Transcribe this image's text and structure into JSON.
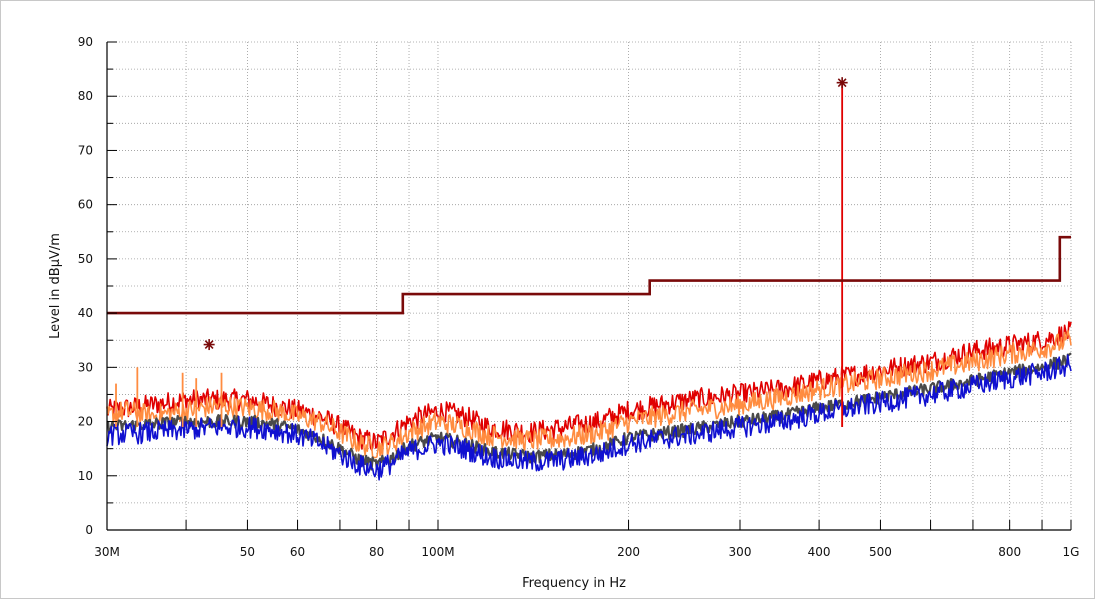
{
  "chart_data": {
    "type": "line",
    "xlabel": "Frequency in Hz",
    "ylabel": "Level in dBµV/m",
    "x_scale": "log",
    "xlim": [
      30000000,
      1000000000
    ],
    "ylim": [
      0,
      90
    ],
    "grid": true,
    "y_ticks": [
      0,
      10,
      20,
      30,
      40,
      50,
      60,
      70,
      80,
      90
    ],
    "x_ticks": [
      {
        "value": 30000000,
        "label": "30M"
      },
      {
        "value": 40000000,
        "label": ""
      },
      {
        "value": 50000000,
        "label": "50"
      },
      {
        "value": 60000000,
        "label": "60"
      },
      {
        "value": 70000000,
        "label": ""
      },
      {
        "value": 80000000,
        "label": "80"
      },
      {
        "value": 90000000,
        "label": ""
      },
      {
        "value": 100000000,
        "label": "100M"
      },
      {
        "value": 200000000,
        "label": "200"
      },
      {
        "value": 300000000,
        "label": "300"
      },
      {
        "value": 400000000,
        "label": "400"
      },
      {
        "value": 500000000,
        "label": "500"
      },
      {
        "value": 600000000,
        "label": ""
      },
      {
        "value": 700000000,
        "label": ""
      },
      {
        "value": 800000000,
        "label": "800"
      },
      {
        "value": 900000000,
        "label": ""
      },
      {
        "value": 1000000000,
        "label": "1G"
      }
    ],
    "limit_line": {
      "color": "#7a0a0a",
      "points": [
        [
          30000000,
          40
        ],
        [
          88000000,
          40
        ],
        [
          88000000,
          43.5
        ],
        [
          216000000,
          43.5
        ],
        [
          216000000,
          46
        ],
        [
          960000000,
          46
        ],
        [
          960000000,
          54
        ],
        [
          1000000000,
          54
        ]
      ]
    },
    "series": [
      {
        "color": "#e00000",
        "points": [
          [
            30000000,
            22
          ],
          [
            35000000,
            23
          ],
          [
            40000000,
            24
          ],
          [
            45000000,
            24
          ],
          [
            50000000,
            24
          ],
          [
            55000000,
            23
          ],
          [
            60000000,
            22
          ],
          [
            65000000,
            21
          ],
          [
            70000000,
            19
          ],
          [
            75000000,
            17
          ],
          [
            80000000,
            16
          ],
          [
            85000000,
            18
          ],
          [
            90000000,
            20
          ],
          [
            100000000,
            22
          ],
          [
            110000000,
            21
          ],
          [
            120000000,
            19
          ],
          [
            140000000,
            18
          ],
          [
            160000000,
            19
          ],
          [
            180000000,
            20
          ],
          [
            200000000,
            22
          ],
          [
            250000000,
            24
          ],
          [
            300000000,
            25
          ],
          [
            350000000,
            26
          ],
          [
            400000000,
            27.5
          ],
          [
            450000000,
            28.5
          ],
          [
            500000000,
            29.5
          ],
          [
            600000000,
            31
          ],
          [
            700000000,
            33
          ],
          [
            800000000,
            34
          ],
          [
            900000000,
            35
          ],
          [
            1000000000,
            36.5
          ]
        ]
      },
      {
        "color": "#ff8c40",
        "points": [
          [
            30000000,
            21
          ],
          [
            32000000,
            22
          ],
          [
            34000000,
            21.5
          ],
          [
            35000000,
            21
          ],
          [
            40000000,
            22
          ],
          [
            45000000,
            23
          ],
          [
            50000000,
            22.5
          ],
          [
            55000000,
            22
          ],
          [
            60000000,
            21
          ],
          [
            65000000,
            20
          ],
          [
            70000000,
            18
          ],
          [
            75000000,
            16
          ],
          [
            80000000,
            15
          ],
          [
            85000000,
            16
          ],
          [
            90000000,
            18
          ],
          [
            100000000,
            20
          ],
          [
            110000000,
            19
          ],
          [
            120000000,
            17.5
          ],
          [
            140000000,
            16.5
          ],
          [
            160000000,
            17
          ],
          [
            180000000,
            18
          ],
          [
            200000000,
            20
          ],
          [
            250000000,
            22
          ],
          [
            300000000,
            23
          ],
          [
            350000000,
            24.5
          ],
          [
            400000000,
            26
          ],
          [
            450000000,
            27
          ],
          [
            500000000,
            28
          ],
          [
            600000000,
            29.5
          ],
          [
            700000000,
            31
          ],
          [
            800000000,
            32.5
          ],
          [
            900000000,
            33.5
          ],
          [
            1000000000,
            35
          ]
        ]
      },
      {
        "color": "#4a4a4a",
        "points": [
          [
            30000000,
            19
          ],
          [
            35000000,
            19.5
          ],
          [
            40000000,
            20
          ],
          [
            45000000,
            20
          ],
          [
            50000000,
            20
          ],
          [
            55000000,
            19.5
          ],
          [
            60000000,
            18.5
          ],
          [
            65000000,
            17
          ],
          [
            70000000,
            15
          ],
          [
            75000000,
            13
          ],
          [
            80000000,
            12
          ],
          [
            85000000,
            13.5
          ],
          [
            90000000,
            15.5
          ],
          [
            100000000,
            17
          ],
          [
            110000000,
            16
          ],
          [
            120000000,
            14.5
          ],
          [
            140000000,
            13.5
          ],
          [
            160000000,
            14
          ],
          [
            180000000,
            15
          ],
          [
            200000000,
            17
          ],
          [
            250000000,
            18.5
          ],
          [
            300000000,
            20
          ],
          [
            350000000,
            21
          ],
          [
            400000000,
            22.5
          ],
          [
            450000000,
            23.5
          ],
          [
            500000000,
            24.5
          ],
          [
            600000000,
            26
          ],
          [
            700000000,
            27.5
          ],
          [
            800000000,
            29
          ],
          [
            900000000,
            30
          ],
          [
            1000000000,
            31.5
          ]
        ]
      },
      {
        "color": "#1010d0",
        "points": [
          [
            30000000,
            17.5
          ],
          [
            35000000,
            18
          ],
          [
            40000000,
            18.5
          ],
          [
            45000000,
            19
          ],
          [
            50000000,
            19
          ],
          [
            55000000,
            18.5
          ],
          [
            60000000,
            17.5
          ],
          [
            65000000,
            16
          ],
          [
            70000000,
            14
          ],
          [
            75000000,
            12
          ],
          [
            80000000,
            11
          ],
          [
            85000000,
            12.5
          ],
          [
            90000000,
            14.5
          ],
          [
            100000000,
            16
          ],
          [
            110000000,
            15
          ],
          [
            120000000,
            13.5
          ],
          [
            140000000,
            12.5
          ],
          [
            160000000,
            13
          ],
          [
            180000000,
            14
          ],
          [
            200000000,
            16
          ],
          [
            250000000,
            17.5
          ],
          [
            300000000,
            19
          ],
          [
            350000000,
            20
          ],
          [
            400000000,
            21.5
          ],
          [
            450000000,
            22.5
          ],
          [
            500000000,
            23.5
          ],
          [
            600000000,
            25
          ],
          [
            700000000,
            26.5
          ],
          [
            800000000,
            28
          ],
          [
            900000000,
            29
          ],
          [
            1000000000,
            30.5
          ]
        ]
      }
    ],
    "spurs": [
      {
        "x": 31000000,
        "y": 27,
        "color": "#ff8c40"
      },
      {
        "x": 33500000,
        "y": 30,
        "color": "#ff8c40"
      },
      {
        "x": 39500000,
        "y": 29,
        "color": "#ff8c40"
      },
      {
        "x": 41500000,
        "y": 28,
        "color": "#ff8c40"
      },
      {
        "x": 45500000,
        "y": 29,
        "color": "#ff8c40"
      },
      {
        "x": 435000000,
        "y": 35,
        "color": "#ff8c40"
      },
      {
        "x": 435000000,
        "y": 82.5,
        "color": "#e00000"
      }
    ],
    "markers": [
      {
        "x": 43500000,
        "y": 34.2,
        "color": "#7a0a0a"
      },
      {
        "x": 435000000,
        "y": 82.5,
        "color": "#7a0a0a"
      }
    ]
  }
}
